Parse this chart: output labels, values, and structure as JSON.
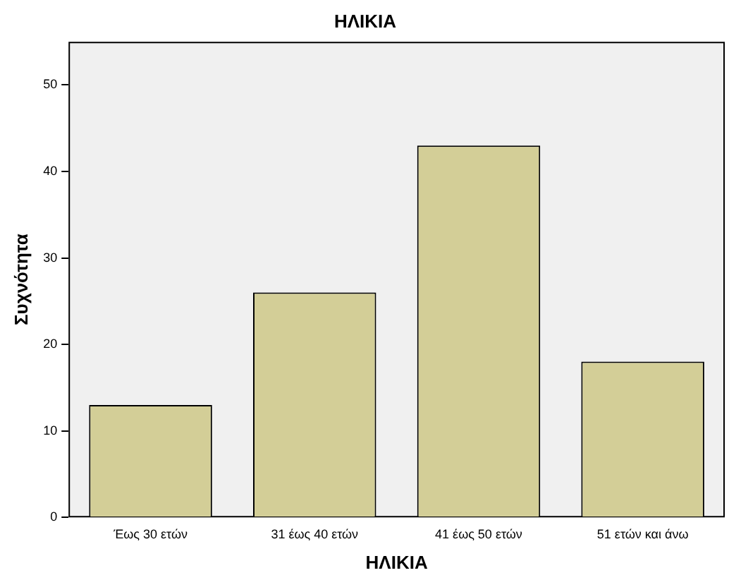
{
  "chart_data": {
    "type": "bar",
    "title": "ΗΛΙΚΙΑ",
    "xlabel": "ΗΛΙΚΙΑ",
    "ylabel": "Συχνότητα",
    "categories": [
      "Έως 30 ετών",
      "31 έως 40 ετών",
      "41 έως 50 ετών",
      "51 ετών και άνω"
    ],
    "values": [
      13,
      26,
      43,
      18
    ],
    "color": "#d3ce97",
    "ylim": [
      0,
      55
    ],
    "yticks": [
      0,
      10,
      20,
      30,
      40,
      50
    ],
    "grid": false,
    "legend": false
  }
}
